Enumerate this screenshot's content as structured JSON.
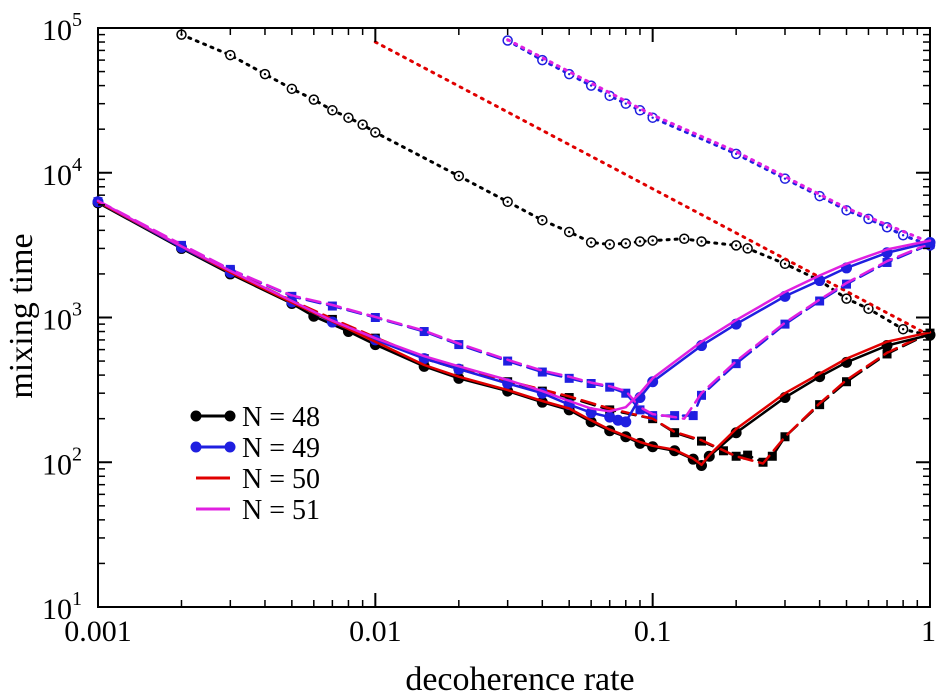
{
  "chart_data": {
    "type": "line",
    "title": "",
    "xlabel": "decoherence rate",
    "ylabel": "mixing time",
    "xscale": "log",
    "yscale": "log",
    "xlim": [
      0.001,
      1
    ],
    "ylim": [
      10,
      100000
    ],
    "x_ticks": [
      {
        "value": 0.001,
        "label": "0.001"
      },
      {
        "value": 0.01,
        "label": "0.01"
      },
      {
        "value": 0.1,
        "label": "0.1"
      },
      {
        "value": 1,
        "label": "1"
      }
    ],
    "y_ticks": [
      {
        "value": 10,
        "base": "10",
        "exp": "1"
      },
      {
        "value": 100,
        "base": "10",
        "exp": "2"
      },
      {
        "value": 1000,
        "base": "10",
        "exp": "3"
      },
      {
        "value": 10000,
        "base": "10",
        "exp": "4"
      },
      {
        "value": 100000,
        "base": "10",
        "exp": "5"
      }
    ],
    "grid": false,
    "legend": {
      "position": "lower-left",
      "entries": [
        {
          "label": "N = 48",
          "color": "#000000",
          "marker": "circle"
        },
        {
          "label": "N = 49",
          "color": "#1f1fe0",
          "marker": "circle"
        },
        {
          "label": "N = 50",
          "color": "#e00000",
          "marker": "none"
        },
        {
          "label": "N = 51",
          "color": "#e020e0",
          "marker": "none"
        }
      ]
    },
    "series": [
      {
        "id": "n48-solid",
        "color": "#000000",
        "style": "solid",
        "marker": "circle",
        "x": [
          0.001,
          0.002,
          0.003,
          0.005,
          0.006,
          0.008,
          0.01,
          0.015,
          0.02,
          0.03,
          0.04,
          0.05,
          0.06,
          0.07,
          0.08,
          0.09,
          0.1,
          0.12,
          0.14,
          0.15,
          0.16,
          0.2,
          0.3,
          0.4,
          0.5,
          0.7,
          1.0
        ],
        "y": [
          6200,
          3000,
          2000,
          1250,
          1020,
          800,
          650,
          460,
          380,
          310,
          260,
          230,
          190,
          165,
          150,
          135,
          128,
          120,
          105,
          95,
          110,
          160,
          280,
          390,
          490,
          640,
          760
        ]
      },
      {
        "id": "n49-solid",
        "color": "#1f1fe0",
        "style": "solid",
        "marker": "circle",
        "x": [
          0.001,
          0.002,
          0.003,
          0.005,
          0.007,
          0.01,
          0.015,
          0.02,
          0.03,
          0.04,
          0.05,
          0.06,
          0.07,
          0.075,
          0.08,
          0.09,
          0.1,
          0.15,
          0.2,
          0.3,
          0.4,
          0.5,
          0.7,
          1.0
        ],
        "y": [
          6300,
          3050,
          2050,
          1280,
          930,
          700,
          520,
          440,
          350,
          300,
          250,
          220,
          205,
          195,
          190,
          280,
          360,
          640,
          900,
          1400,
          1800,
          2200,
          2800,
          3300
        ]
      },
      {
        "id": "n50-solid",
        "color": "#e00000",
        "style": "solid",
        "marker": "none",
        "x": [
          0.001,
          0.002,
          0.003,
          0.005,
          0.007,
          0.01,
          0.015,
          0.02,
          0.03,
          0.04,
          0.05,
          0.06,
          0.07,
          0.08,
          0.09,
          0.1,
          0.12,
          0.14,
          0.15,
          0.16,
          0.2,
          0.3,
          0.5,
          0.7,
          1.0
        ],
        "y": [
          6300,
          3100,
          2050,
          1270,
          940,
          680,
          470,
          390,
          315,
          265,
          235,
          195,
          168,
          152,
          138,
          130,
          122,
          106,
          96,
          112,
          170,
          300,
          520,
          680,
          790
        ]
      },
      {
        "id": "n51-solid",
        "color": "#e020e0",
        "style": "solid",
        "marker": "none",
        "x": [
          0.001,
          0.002,
          0.003,
          0.005,
          0.007,
          0.01,
          0.015,
          0.02,
          0.03,
          0.04,
          0.05,
          0.06,
          0.07,
          0.08,
          0.09,
          0.1,
          0.15,
          0.2,
          0.3,
          0.4,
          0.5,
          0.7,
          1.0
        ],
        "y": [
          6400,
          3100,
          2100,
          1300,
          950,
          720,
          540,
          460,
          370,
          310,
          265,
          235,
          225,
          240,
          300,
          380,
          680,
          960,
          1500,
          1950,
          2350,
          2950,
          3400
        ]
      },
      {
        "id": "n48-dashed",
        "color": "#000000",
        "style": "dashed",
        "marker": "square",
        "x": [
          0.001,
          0.002,
          0.003,
          0.005,
          0.007,
          0.01,
          0.015,
          0.02,
          0.03,
          0.04,
          0.05,
          0.07,
          0.1,
          0.12,
          0.15,
          0.18,
          0.2,
          0.22,
          0.25,
          0.27,
          0.3,
          0.4,
          0.5,
          0.7,
          1.0
        ],
        "y": [
          6300,
          3100,
          2100,
          1300,
          970,
          720,
          520,
          440,
          360,
          310,
          280,
          230,
          200,
          160,
          140,
          120,
          110,
          112,
          100,
          110,
          150,
          250,
          360,
          560,
          780
        ]
      },
      {
        "id": "n49-dashed",
        "color": "#1f1fe0",
        "style": "dashed",
        "marker": "square",
        "x": [
          0.001,
          0.002,
          0.003,
          0.005,
          0.007,
          0.01,
          0.015,
          0.02,
          0.03,
          0.04,
          0.05,
          0.06,
          0.07,
          0.08,
          0.09,
          0.1,
          0.12,
          0.14,
          0.15,
          0.2,
          0.3,
          0.4,
          0.5,
          0.7,
          1.0
        ],
        "y": [
          6300,
          3150,
          2150,
          1400,
          1200,
          1000,
          800,
          650,
          500,
          420,
          380,
          350,
          330,
          300,
          230,
          210,
          210,
          210,
          290,
          480,
          900,
          1300,
          1700,
          2400,
          3200
        ]
      },
      {
        "id": "n50-dashed",
        "color": "#e00000",
        "style": "dashed",
        "marker": "none",
        "x": [
          0.001,
          0.002,
          0.003,
          0.005,
          0.007,
          0.01,
          0.015,
          0.02,
          0.03,
          0.05,
          0.07,
          0.1,
          0.12,
          0.15,
          0.2,
          0.25,
          0.3,
          0.4,
          0.5,
          0.7,
          1.0
        ],
        "y": [
          6300,
          3150,
          2100,
          1310,
          980,
          730,
          525,
          445,
          365,
          285,
          235,
          200,
          162,
          142,
          110,
          98,
          150,
          255,
          370,
          570,
          790
        ]
      },
      {
        "id": "n51-dashed",
        "color": "#e020e0",
        "style": "dashed",
        "marker": "none",
        "x": [
          0.001,
          0.002,
          0.003,
          0.005,
          0.007,
          0.01,
          0.015,
          0.02,
          0.03,
          0.04,
          0.05,
          0.06,
          0.07,
          0.08,
          0.09,
          0.1,
          0.12,
          0.13,
          0.15,
          0.2,
          0.3,
          0.4,
          0.5,
          0.7,
          1.0
        ],
        "y": [
          6400,
          3200,
          2150,
          1420,
          1220,
          1010,
          810,
          660,
          510,
          430,
          390,
          355,
          335,
          310,
          240,
          215,
          205,
          200,
          300,
          500,
          920,
          1330,
          1730,
          2450,
          3250
        ]
      },
      {
        "id": "n48-dotted",
        "color": "#000000",
        "style": "dotted",
        "marker": "open-circle",
        "x": [
          0.002,
          0.003,
          0.004,
          0.005,
          0.006,
          0.007,
          0.008,
          0.009,
          0.01,
          0.02,
          0.03,
          0.04,
          0.05,
          0.06,
          0.07,
          0.08,
          0.09,
          0.1,
          0.13,
          0.15,
          0.2,
          0.22,
          0.3,
          0.4,
          0.5,
          0.6,
          0.8,
          1.0
        ],
        "y": [
          90000,
          65000,
          48000,
          38000,
          32000,
          27000,
          24000,
          21500,
          19000,
          9500,
          6300,
          4700,
          3900,
          3300,
          3200,
          3250,
          3350,
          3400,
          3500,
          3350,
          3150,
          3000,
          2350,
          1800,
          1350,
          1150,
          830,
          750
        ]
      },
      {
        "id": "n49-dotted",
        "color": "#1f1fe0",
        "style": "dotted",
        "marker": "open-circle",
        "x": [
          0.03,
          0.04,
          0.05,
          0.06,
          0.07,
          0.08,
          0.09,
          0.1,
          0.2,
          0.3,
          0.4,
          0.5,
          0.6,
          0.7,
          0.8,
          1.0
        ],
        "y": [
          82000,
          60000,
          48000,
          40000,
          34000,
          30000,
          27000,
          24000,
          13500,
          9100,
          6900,
          5500,
          4800,
          4200,
          3700,
          3150
        ]
      },
      {
        "id": "n50-dotted",
        "color": "#e00000",
        "style": "dotted",
        "marker": "none",
        "x": [
          0.01,
          1.0
        ],
        "y": [
          80000,
          750
        ]
      },
      {
        "id": "n51-dotted",
        "color": "#e020e0",
        "style": "dotted",
        "marker": "none",
        "x": [
          0.03,
          0.1,
          0.2,
          0.5,
          1.0
        ],
        "y": [
          83000,
          25000,
          14000,
          5700,
          3300
        ]
      }
    ]
  }
}
